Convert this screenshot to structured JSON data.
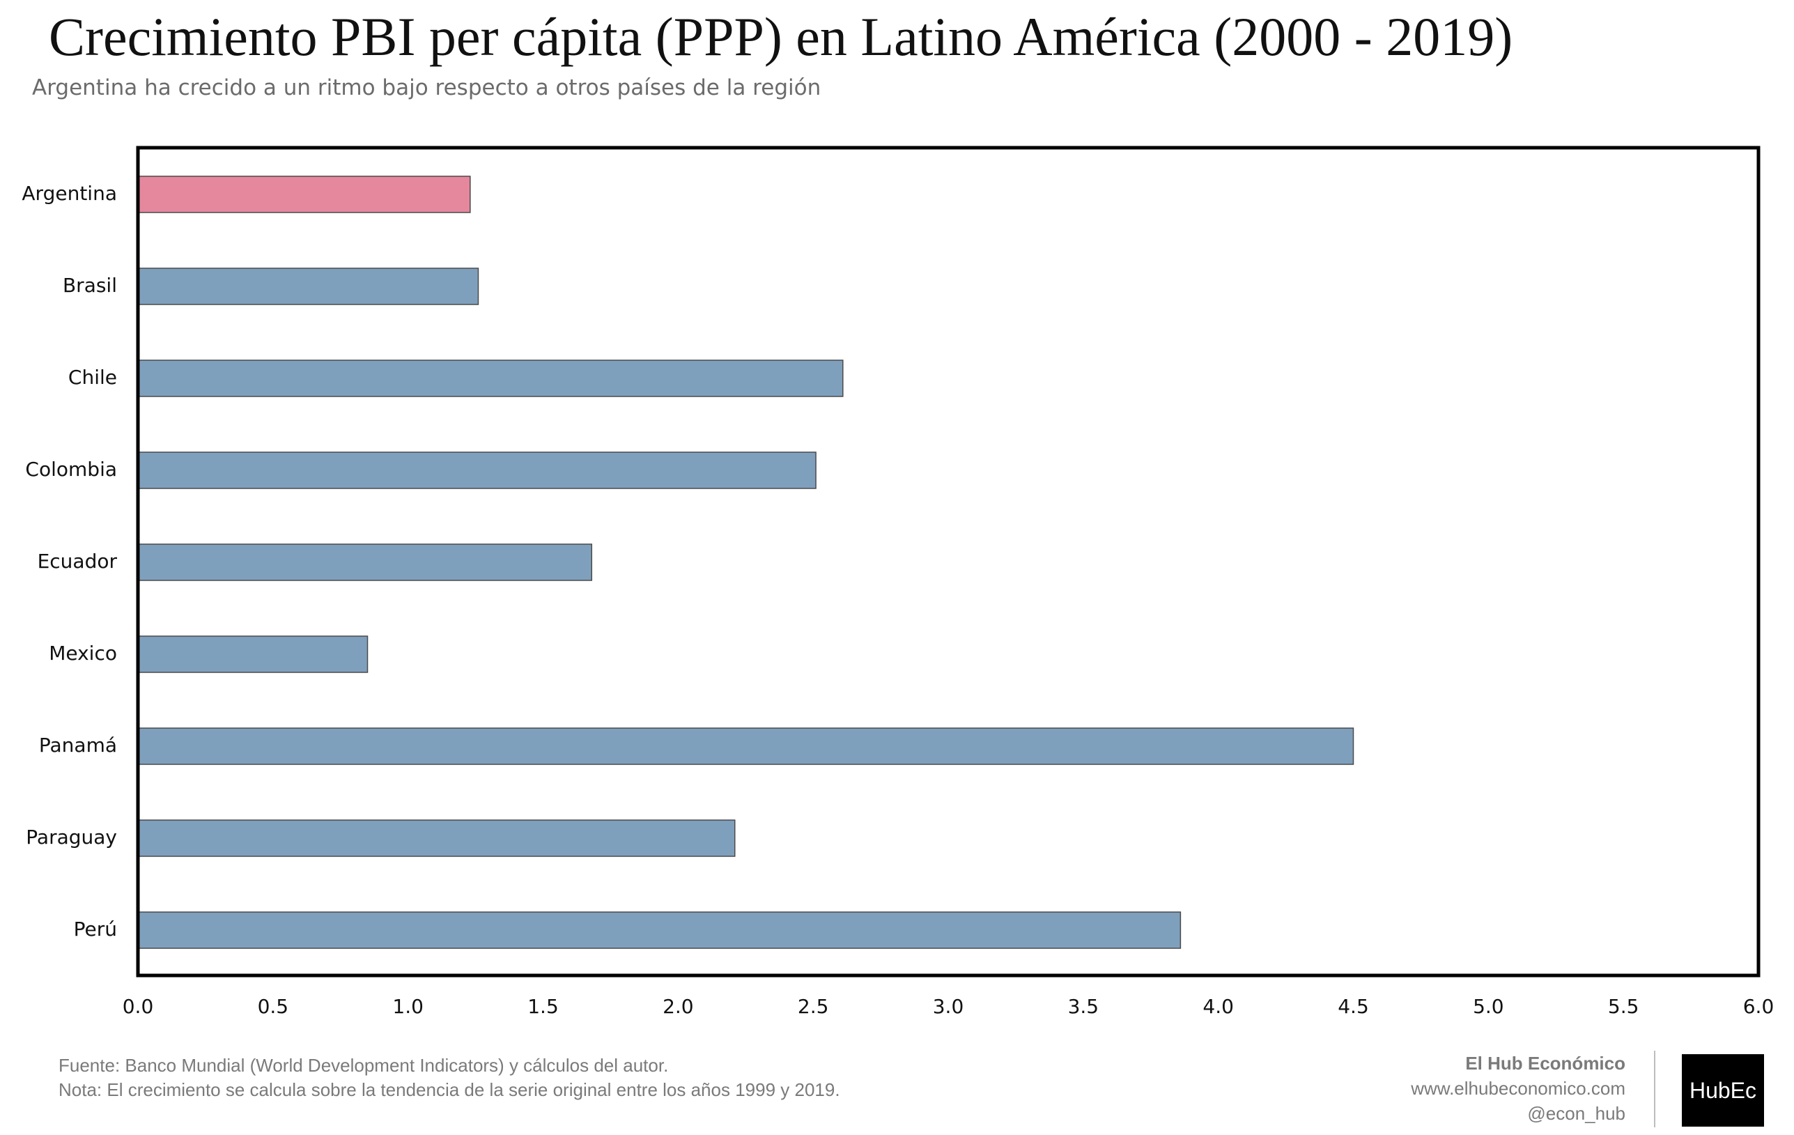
{
  "title": "Crecimiento PBI per cápita (PPP) en Latino América (2000 - 2019)",
  "subtitle": "Argentina ha crecido a un ritmo bajo respecto a otros países de la región",
  "colors": {
    "highlight": "#e5879d",
    "default": "#7fa0bd",
    "bar_edge": "#4a4a4a",
    "frame": "#000000"
  },
  "chart_data": {
    "type": "bar",
    "orientation": "horizontal",
    "title": "Crecimiento PBI per cápita (PPP) en Latino América (2000 - 2019)",
    "xlabel": "",
    "ylabel": "",
    "xlim": [
      0,
      6
    ],
    "x_ticks": [
      "0.0",
      "0.5",
      "1.0",
      "1.5",
      "2.0",
      "2.5",
      "3.0",
      "3.5",
      "4.0",
      "4.5",
      "5.0",
      "5.5",
      "6.0"
    ],
    "categories": [
      "Argentina",
      "Brasil",
      "Chile",
      "Colombia",
      "Ecuador",
      "Mexico",
      "Panamá",
      "Paraguay",
      "Perú"
    ],
    "values": [
      1.23,
      1.26,
      2.61,
      2.51,
      1.68,
      0.85,
      4.5,
      2.21,
      3.86
    ],
    "highlighted": [
      "Argentina"
    ],
    "grid": false
  },
  "footer": {
    "source": "Fuente: Banco Mundial (World Development Indicators) y cálculos del autor.",
    "note": "Nota: El crecimiento se calcula sobre la tendencia de la serie original entre los años 1999 y 2019.",
    "brand_name": "El Hub Económico",
    "website": "www.elhubeconomico.com",
    "handle": "@econ_hub",
    "logo_text": "HubEc"
  }
}
